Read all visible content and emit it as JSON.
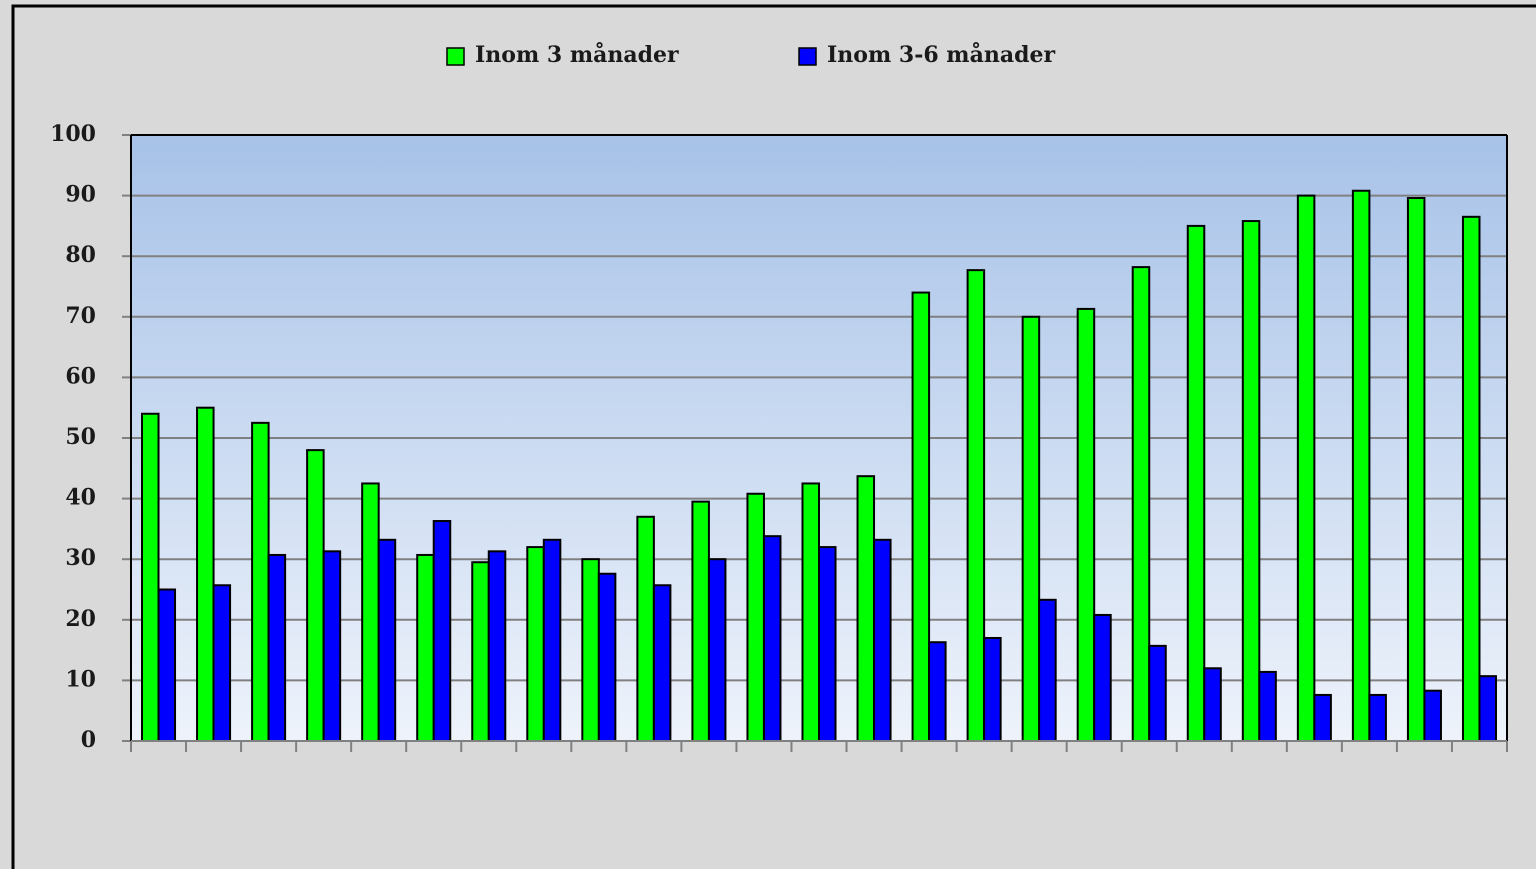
{
  "chart_data": {
    "type": "bar",
    "categories": [
      null,
      null,
      null,
      null,
      null,
      null,
      null,
      null,
      null,
      null,
      null,
      null,
      null,
      null,
      null,
      null,
      null,
      null,
      null,
      null,
      null,
      null,
      null,
      null,
      null
    ],
    "series": [
      {
        "name": "Inom 3 månader",
        "color": "#00ff00",
        "values": [
          54,
          55,
          52.5,
          48,
          42.5,
          30.7,
          29.5,
          32,
          30,
          37,
          39.5,
          40.8,
          42.5,
          43.7,
          74,
          77.7,
          70,
          71.3,
          78.2,
          85,
          85.8,
          90,
          90.8,
          89.6,
          86.5
        ]
      },
      {
        "name": "Inom 3-6 månader",
        "color": "#0000ff",
        "values": [
          25,
          25.7,
          30.7,
          31.3,
          33.2,
          36.3,
          31.3,
          33.2,
          27.6,
          25.7,
          30,
          33.8,
          32,
          33.2,
          16.3,
          17,
          23.3,
          20.8,
          15.7,
          12,
          11.4,
          7.6,
          7.6,
          8.3,
          10.7
        ]
      }
    ],
    "ylim": [
      0,
      100
    ],
    "yticks": [
      0,
      10,
      20,
      30,
      40,
      50,
      60,
      70,
      80,
      90,
      100
    ],
    "grid": true,
    "legend": "top"
  }
}
